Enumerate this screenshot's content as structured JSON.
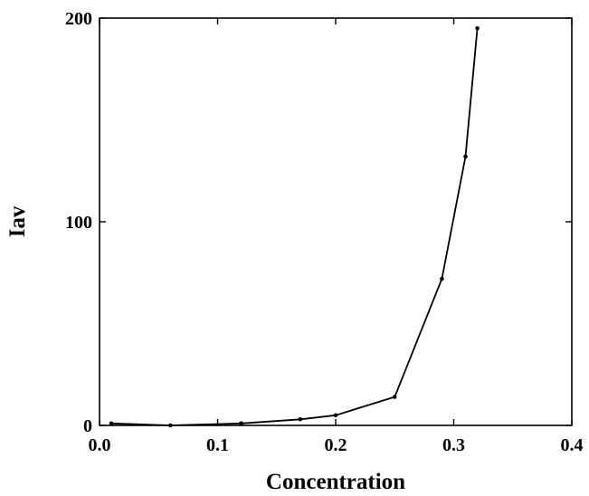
{
  "chart_data": {
    "type": "line",
    "title": "",
    "xlabel": "Concentration",
    "ylabel": "Iav",
    "xlim": [
      0.0,
      0.4
    ],
    "ylim": [
      0,
      200
    ],
    "xticks": [
      "0.0",
      "0.1",
      "0.2",
      "0.3",
      "0.4"
    ],
    "yticks": [
      "0",
      "100",
      "200"
    ],
    "grid": false,
    "legend": "none",
    "series": [
      {
        "x": [
          0.01,
          0.06,
          0.12,
          0.17,
          0.2,
          0.25,
          0.29,
          0.31,
          0.32
        ],
        "y": [
          1,
          0,
          1,
          3,
          5,
          14,
          72,
          132,
          195
        ]
      }
    ],
    "colors": {
      "line": "#000000",
      "axes": "#000000"
    }
  }
}
